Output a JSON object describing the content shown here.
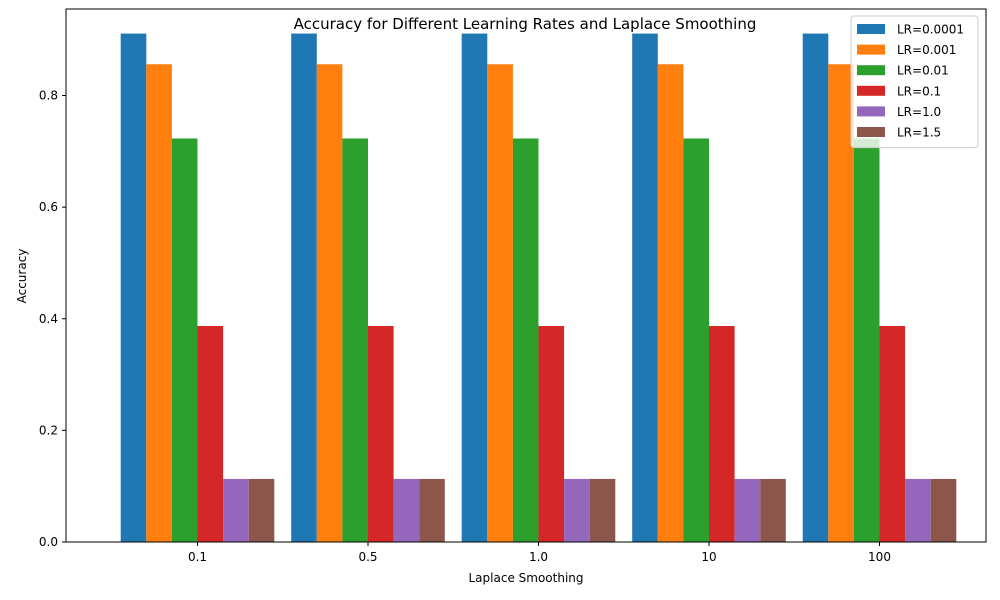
{
  "chart_data": {
    "type": "bar",
    "title": "Accuracy for Different Learning Rates and Laplace Smoothing",
    "xlabel": "Laplace Smoothing",
    "ylabel": "Accuracy",
    "categories": [
      "0.1",
      "0.5",
      "1.0",
      "10",
      "100"
    ],
    "ylim": [
      0,
      0.955
    ],
    "yticks": [
      "0.0",
      "0.2",
      "0.4",
      "0.6",
      "0.8"
    ],
    "grid": false,
    "legend_position": "top-right",
    "series": [
      {
        "name": "LR=0.0001",
        "color": "#1f77b4",
        "values": [
          0.911,
          0.911,
          0.911,
          0.911,
          0.911
        ]
      },
      {
        "name": "LR=0.001",
        "color": "#ff7f0e",
        "values": [
          0.856,
          0.856,
          0.856,
          0.856,
          0.856
        ]
      },
      {
        "name": "LR=0.01",
        "color": "#2ca02c",
        "values": [
          0.723,
          0.723,
          0.723,
          0.723,
          0.723
        ]
      },
      {
        "name": "LR=0.1",
        "color": "#d62728",
        "values": [
          0.387,
          0.387,
          0.387,
          0.387,
          0.387
        ]
      },
      {
        "name": "LR=1.0",
        "color": "#9467bd",
        "values": [
          0.113,
          0.113,
          0.113,
          0.113,
          0.113
        ]
      },
      {
        "name": "LR=1.5",
        "color": "#8c564b",
        "values": [
          0.113,
          0.113,
          0.113,
          0.113,
          0.113
        ]
      }
    ]
  }
}
